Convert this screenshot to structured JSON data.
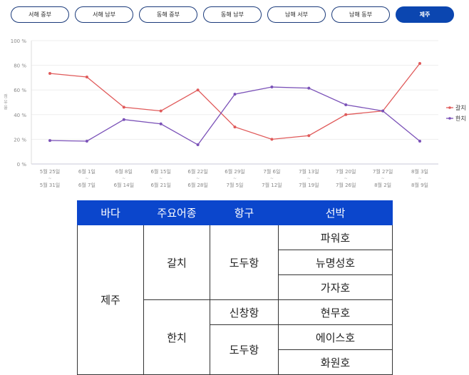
{
  "tabs": [
    "서해 중부",
    "서해 남부",
    "동해 중부",
    "동해 남부",
    "남해 서부",
    "남해 동부",
    "제주"
  ],
  "active_tab": 6,
  "chart_data": {
    "type": "line",
    "ylabel": "점유율",
    "ylim": [
      0,
      100
    ],
    "yticks": [
      "0 %",
      "20 %",
      "40 %",
      "60 %",
      "80 %",
      "100 %"
    ],
    "categories": [
      [
        "5월 25일",
        "5월 31일"
      ],
      [
        "6월 1일",
        "6월 7일"
      ],
      [
        "6월 8일",
        "6월 14일"
      ],
      [
        "6월 15일",
        "6월 21일"
      ],
      [
        "6월 22일",
        "6월 28일"
      ],
      [
        "6월 29일",
        "7월 5일"
      ],
      [
        "7월 6일",
        "7월 12일"
      ],
      [
        "7월 13일",
        "7월 19일"
      ],
      [
        "7월 20일",
        "7월 26일"
      ],
      [
        "7월 27일",
        "8월 2일"
      ],
      [
        "8월 3일",
        "8월 9일"
      ]
    ],
    "range_sep": "~",
    "legend": "right",
    "series": [
      {
        "name": "갈치",
        "color": "#e05a5a",
        "values": [
          73.4,
          70.5,
          46,
          43,
          60,
          30,
          20,
          23,
          40,
          43,
          81.5
        ]
      },
      {
        "name": "한치",
        "color": "#7b52b8",
        "values": [
          19,
          18.5,
          36,
          32.5,
          15.6,
          56.6,
          62.4,
          61.5,
          48,
          43,
          18.5
        ]
      }
    ]
  },
  "table": {
    "headers": [
      "바다",
      "주요어종",
      "항구",
      "선박"
    ],
    "sea": "제주",
    "fish": [
      "갈치",
      "한치"
    ],
    "ports": [
      "도두항",
      "신창항",
      "도두항"
    ],
    "boats": [
      "파워호",
      "뉴명성호",
      "가자호",
      "현무호",
      "에이스호",
      "화원호"
    ]
  }
}
